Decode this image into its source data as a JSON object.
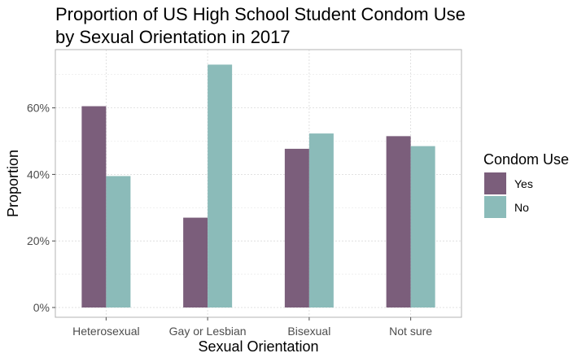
{
  "chart_data": {
    "type": "bar",
    "title_line1": "Proportion of US High School Student Condom Use",
    "title_line2": "by Sexual Orientation in 2017",
    "xlabel": "Sexual Orientation",
    "ylabel": "Proportion",
    "categories": [
      "Heterosexual",
      "Gay or Lesbian",
      "Bisexual",
      "Not sure"
    ],
    "series": [
      {
        "name": "Yes",
        "color": "#7b5e7b",
        "values": [
          0.605,
          0.27,
          0.477,
          0.515
        ]
      },
      {
        "name": "No",
        "color": "#8bbbb9",
        "values": [
          0.395,
          0.73,
          0.523,
          0.485
        ]
      }
    ],
    "ylim": [
      0,
      0.77
    ],
    "yticks": [
      0,
      0.2,
      0.4,
      0.6
    ],
    "ytick_labels": [
      "0%",
      "20%",
      "40%",
      "60%"
    ],
    "grid": true,
    "legend": {
      "title": "Condom Use",
      "position": "right"
    }
  }
}
